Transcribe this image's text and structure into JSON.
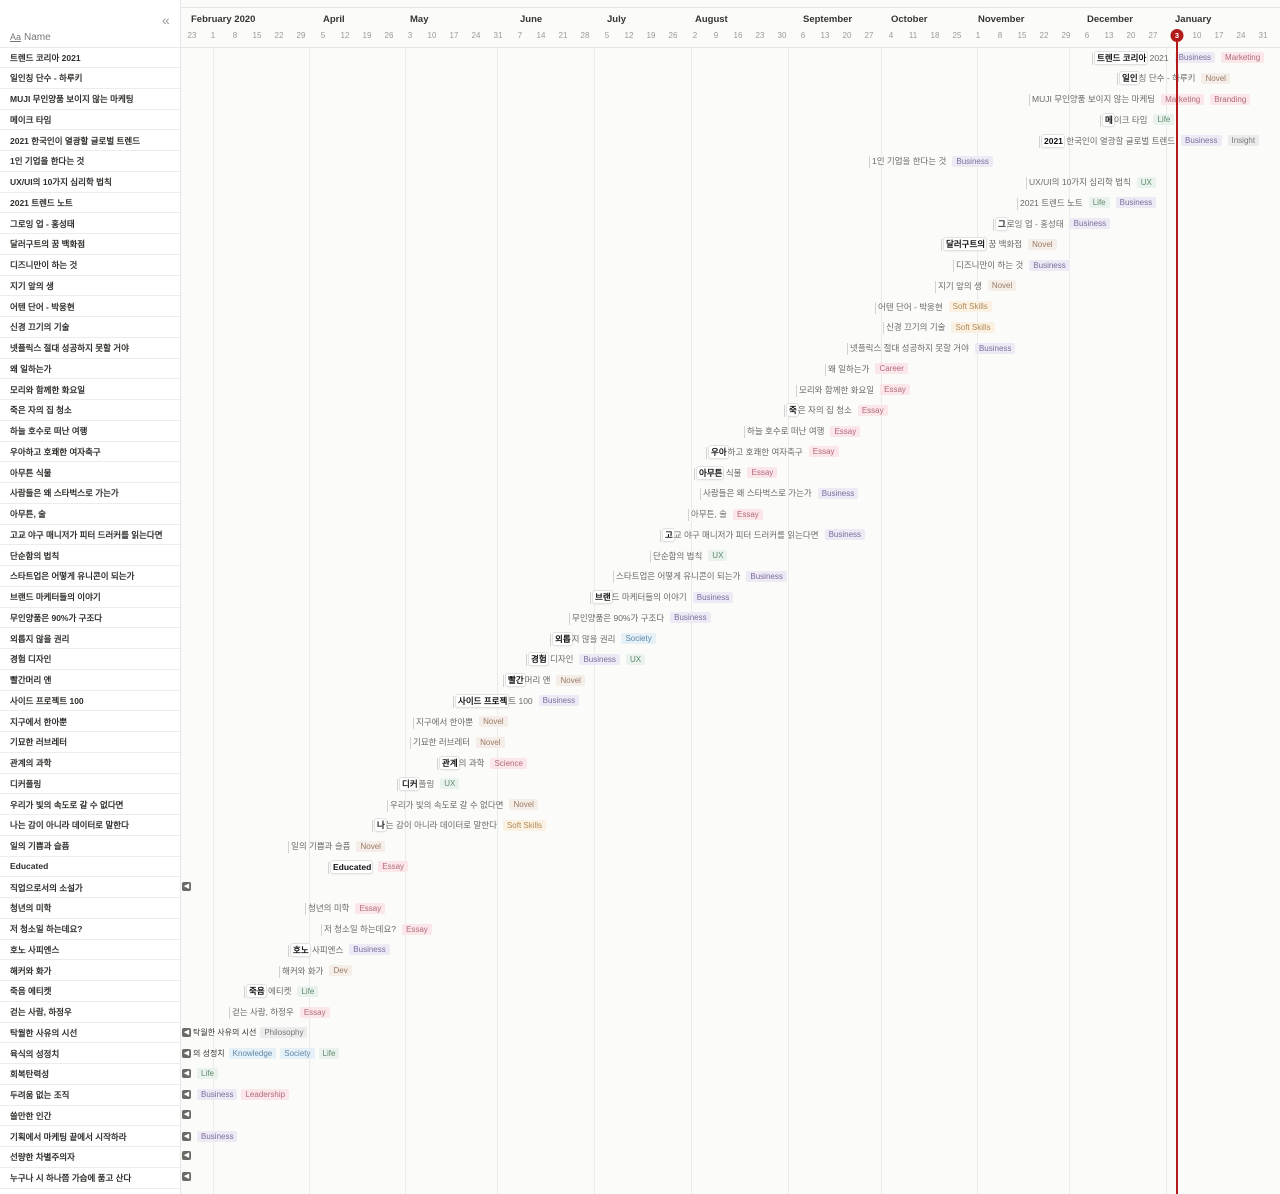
{
  "header": {
    "collapse_icon": "«",
    "name_column": {
      "icon": "Aa",
      "label": "Name"
    },
    "today": "3",
    "months": [
      "February 2020",
      "April",
      "May",
      "June",
      "July",
      "August",
      "September",
      "October",
      "November",
      "December",
      "January"
    ],
    "days": [
      "23",
      "1",
      "8",
      "15",
      "22",
      "29",
      "5",
      "12",
      "19",
      "26",
      "3",
      "10",
      "17",
      "24",
      "31",
      "7",
      "14",
      "21",
      "28",
      "5",
      "12",
      "19",
      "26",
      "2",
      "9",
      "16",
      "23",
      "30",
      "6",
      "13",
      "20",
      "27",
      "4",
      "11",
      "18",
      "25",
      "1",
      "8",
      "15",
      "22",
      "29",
      "6",
      "13",
      "20",
      "27",
      "3",
      "10",
      "17",
      "24",
      "31"
    ]
  },
  "rows": [
    {
      "name": "트렌드 코리아 2021",
      "bar": {
        "prefix": "트렌드 코리아",
        "rest": " 2021",
        "tags": [
          "Business",
          "Marketing"
        ]
      }
    },
    {
      "name": "일인칭 단수 - 하루키",
      "bar": {
        "prefix": "일인",
        "rest": "칭 단수 - 하루키",
        "tags": [
          "Novel"
        ]
      }
    },
    {
      "name": "MUJI 무인양품 보이지 않는 마케팅",
      "bar": {
        "prefix": "",
        "rest": "MUJI 무인양품 보이지 않는 마케팅",
        "tags": [
          "Marketing",
          "Branding"
        ]
      }
    },
    {
      "name": "메이크 타임",
      "bar": {
        "prefix": "메",
        "rest": "이크 타임",
        "tags": [
          "Life"
        ]
      }
    },
    {
      "name": "2021 한국인이 열광할 글로벌 트렌드",
      "bar": {
        "prefix": "2021",
        "rest": " 한국인이 열광할 글로벌 트렌드",
        "tags": [
          "Business",
          "Insight"
        ]
      }
    },
    {
      "name": "1인 기업을 한다는 것",
      "bar": {
        "prefix": "",
        "rest": "1인 기업을 한다는 것",
        "tags": [
          "Business"
        ]
      }
    },
    {
      "name": "UX/UI의 10가지 심리학 법칙",
      "bar": {
        "prefix": "",
        "rest": "UX/UI의 10가지 심리학 법칙",
        "tags": [
          "UX"
        ]
      }
    },
    {
      "name": "2021 트렌드 노트",
      "bar": {
        "prefix": "",
        "rest": "2021 트렌드 노트",
        "tags": [
          "Life",
          "Business"
        ]
      }
    },
    {
      "name": "그로잉 업 - 홍성태",
      "bar": {
        "prefix": "그",
        "rest": "로잉 업 - 홍성태",
        "tags": [
          "Business"
        ]
      }
    },
    {
      "name": "달러구트의 꿈 백화점",
      "bar": {
        "prefix": "달러구트의",
        "rest": " 꿈 백화점",
        "tags": [
          "Novel"
        ]
      }
    },
    {
      "name": "디즈니만이 하는 것",
      "bar": {
        "prefix": "",
        "rest": "디즈니만이 하는 것",
        "tags": [
          "Business"
        ]
      }
    },
    {
      "name": "지기 앞의 생",
      "bar": {
        "prefix": "",
        "rest": "지기 앞의 생",
        "tags": [
          "Novel"
        ]
      }
    },
    {
      "name": "어텐 단어 - 박웅현",
      "bar": {
        "prefix": "",
        "rest": "어텐 단어 - 박웅현",
        "tags": [
          "Soft Skills"
        ]
      }
    },
    {
      "name": "신경 끄기의 기술",
      "bar": {
        "prefix": "",
        "rest": "신경 끄기의 기술",
        "tags": [
          "Soft Skills"
        ]
      }
    },
    {
      "name": "넷플릭스 절대 성공하지 못할 거야",
      "bar": {
        "prefix": "",
        "rest": "넷플릭스 절대 성공하지 못할 거야",
        "tags": [
          "Business"
        ]
      }
    },
    {
      "name": "왜 일하는가",
      "bar": {
        "prefix": "",
        "rest": "왜 일하는가",
        "tags": [
          "Career"
        ]
      }
    },
    {
      "name": "모리와 함께한 화요일",
      "bar": {
        "prefix": "",
        "rest": "모리와 함께한 화요일",
        "tags": [
          "Essay"
        ]
      }
    },
    {
      "name": "죽은 자의 집 청소",
      "bar": {
        "prefix": "죽",
        "rest": "은 자의 집 청소",
        "tags": [
          "Essay"
        ]
      }
    },
    {
      "name": "하늘 호수로 떠난 여행",
      "bar": {
        "prefix": "",
        "rest": "하늘 호수로 떠난 여행",
        "tags": [
          "Essay"
        ]
      }
    },
    {
      "name": "우아하고 호쾌한 여자축구",
      "bar": {
        "prefix": "우아",
        "rest": "하고 호쾌한 여자축구",
        "tags": [
          "Essay"
        ]
      }
    },
    {
      "name": "아무튼 식물",
      "bar": {
        "prefix": "아무튼",
        "rest": " 식물",
        "tags": [
          "Essay"
        ]
      }
    },
    {
      "name": "사람들은 왜 스타벅스로 가는가",
      "bar": {
        "prefix": "",
        "rest": "사람들은 왜 스타벅스로 가는가",
        "tags": [
          "Business"
        ]
      }
    },
    {
      "name": "아무튼, 술",
      "bar": {
        "prefix": "",
        "rest": "아무튼, 술",
        "tags": [
          "Essay"
        ]
      }
    },
    {
      "name": "고교 야구 매니저가 피터 드러커를 읽는다면",
      "bar": {
        "prefix": "고",
        "rest": "교 야구 매니저가 피터 드러커를 읽는다면",
        "tags": [
          "Business"
        ]
      }
    },
    {
      "name": "단순함의 법칙",
      "bar": {
        "prefix": "",
        "rest": "단순함의 법칙",
        "tags": [
          "UX"
        ]
      }
    },
    {
      "name": "스타트업은 어떻게 유니콘이 되는가",
      "bar": {
        "prefix": "",
        "rest": "스타트업은 어떻게 유니콘이 되는가",
        "tags": [
          "Business"
        ]
      }
    },
    {
      "name": "브랜드 마케터들의 이야기",
      "bar": {
        "prefix": "브랜",
        "rest": "드 마케터들의 이야기",
        "tags": [
          "Business"
        ]
      }
    },
    {
      "name": "무인양품은 90%가 구조다",
      "bar": {
        "prefix": "",
        "rest": "무인양품은 90%가 구조다",
        "tags": [
          "Business"
        ]
      }
    },
    {
      "name": "외롭지 않을 권리",
      "bar": {
        "prefix": "외롭",
        "rest": "지 않을 권리",
        "tags": [
          "Society"
        ]
      }
    },
    {
      "name": "경험 디자인",
      "bar": {
        "prefix": "경험",
        "rest": " 디자인",
        "tags": [
          "Business",
          "UX"
        ]
      }
    },
    {
      "name": "빨간머리 앤",
      "bar": {
        "prefix": "빨간",
        "rest": "머리 앤",
        "tags": [
          "Novel"
        ]
      }
    },
    {
      "name": "사이드 프로젝트 100",
      "bar": {
        "prefix": "사이드 프로젝",
        "rest": "트 100",
        "tags": [
          "Business"
        ]
      }
    },
    {
      "name": "지구에서 한아뿐",
      "bar": {
        "prefix": "",
        "rest": "지구에서 한아뿐",
        "tags": [
          "Novel"
        ]
      }
    },
    {
      "name": "기묘한 러브레터",
      "bar": {
        "prefix": "",
        "rest": "기묘한 러브레터",
        "tags": [
          "Novel"
        ]
      }
    },
    {
      "name": "관계의 과학",
      "bar": {
        "prefix": "관계",
        "rest": "의 과학",
        "tags": [
          "Science"
        ]
      }
    },
    {
      "name": "디커플링",
      "bar": {
        "prefix": "디커",
        "rest": "플링",
        "tags": [
          "UX"
        ]
      }
    },
    {
      "name": "우리가 빛의 속도로 갈 수 없다면",
      "bar": {
        "prefix": "",
        "rest": "우리가 빛의 속도로 갈 수 없다면",
        "tags": [
          "Novel"
        ]
      }
    },
    {
      "name": "나는 감이 아니라 데이터로 말한다",
      "bar": {
        "prefix": "나",
        "rest": "는 감이 아니라 데이터로 말한다",
        "tags": [
          "Soft Skills"
        ]
      }
    },
    {
      "name": "일의 기쁨과 슬픔",
      "bar": {
        "prefix": "",
        "rest": "일의 기쁨과 슬픔",
        "tags": [
          "Novel"
        ]
      }
    },
    {
      "name": "Educated",
      "bar": {
        "prefix": "Educated",
        "rest": "",
        "tags": [
          "Essay"
        ]
      }
    },
    {
      "name": "직업으로서의 소설가",
      "offscreen": {
        "text": "",
        "tags": []
      }
    },
    {
      "name": "청년의 미학",
      "bar": {
        "prefix": "",
        "rest": "청년의 미학",
        "tags": [
          "Essay"
        ]
      }
    },
    {
      "name": "저 청소일 하는데요?",
      "bar": {
        "prefix": "",
        "rest": "저 청소일 하는데요?",
        "tags": [
          "Essay"
        ]
      }
    },
    {
      "name": "호노 사피엔스",
      "bar": {
        "prefix": "호노",
        "rest": " 사피엔스",
        "tags": [
          "Business"
        ]
      }
    },
    {
      "name": "해커와 화가",
      "bar": {
        "prefix": "",
        "rest": "해커와 화가",
        "tags": [
          "Dev"
        ]
      }
    },
    {
      "name": "죽음 에티켓",
      "bar": {
        "prefix": "죽음",
        "rest": " 에티켓",
        "tags": [
          "Life"
        ]
      }
    },
    {
      "name": "걷는 사람, 하정우",
      "bar": {
        "prefix": "",
        "rest": "걷는 사람, 하정우",
        "tags": [
          "Essay"
        ]
      }
    },
    {
      "name": "탁월한 사유의 시선",
      "offscreen": {
        "text": "탁월한 사유의 시선",
        "tags": [
          "Philosophy"
        ]
      }
    },
    {
      "name": "육식의 성정치",
      "offscreen": {
        "text": "의 성정치",
        "tags": [
          "Knowledge",
          "Society",
          "Life"
        ]
      }
    },
    {
      "name": "회복탄력성",
      "offscreen": {
        "text": "",
        "tags": [
          "Life"
        ]
      }
    },
    {
      "name": "두려움 없는 조직",
      "offscreen": {
        "text": "",
        "tags": [
          "Business",
          "Leadership"
        ]
      }
    },
    {
      "name": "쓸만한 인간",
      "offscreen": {
        "text": "",
        "tags": []
      }
    },
    {
      "name": "기획에서 마케팅 끝에서 시작하라",
      "offscreen": {
        "text": "",
        "tags": [
          "Business"
        ]
      }
    },
    {
      "name": "선량한 차별주의자",
      "offscreen": {
        "text": "",
        "tags": []
      }
    },
    {
      "name": "누구나 시 하나쯤 가슴에 품고 산다",
      "offscreen": {
        "text": "",
        "tags": []
      }
    }
  ]
}
